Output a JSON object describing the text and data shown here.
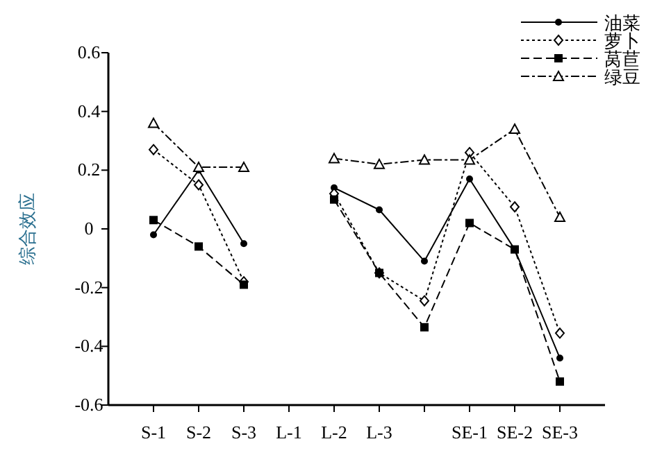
{
  "chart_data": {
    "type": "line",
    "ylabel": "综合效应",
    "categories": [
      "S-1",
      "S-2",
      "S-3",
      "L-1",
      "L-2",
      "L-3",
      null,
      "SE-1",
      "SE-2",
      "SE-3"
    ],
    "ylim": [
      -0.6,
      0.6
    ],
    "yticks": [
      -0.6,
      -0.4,
      -0.2,
      0,
      0.2,
      0.4,
      0.6
    ],
    "grid": false,
    "legend": "top right",
    "series": [
      {
        "name": "油菜",
        "color": "#000000",
        "line_style": "solid",
        "marker": "circle",
        "values": [
          -0.02,
          0.2,
          -0.05,
          null,
          0.14,
          0.065,
          -0.11,
          0.17,
          -0.07,
          -0.44
        ]
      },
      {
        "name": "萝卜",
        "color": "#000000",
        "line_style": "dotted",
        "marker": "diamond",
        "values": [
          0.27,
          0.15,
          -0.18,
          null,
          0.12,
          -0.15,
          -0.245,
          0.26,
          0.075,
          -0.355
        ]
      },
      {
        "name": "莴苣",
        "color": "#000000",
        "line_style": "dashed",
        "marker": "square",
        "values": [
          0.03,
          -0.06,
          -0.19,
          null,
          0.1,
          -0.15,
          -0.335,
          0.02,
          -0.07,
          -0.52
        ]
      },
      {
        "name": "绿豆",
        "color": "#000000",
        "line_style": "dashdot",
        "marker": "triangle",
        "values": [
          0.36,
          0.21,
          0.21,
          null,
          0.24,
          0.22,
          0.235,
          0.235,
          0.34,
          0.04
        ]
      }
    ]
  }
}
